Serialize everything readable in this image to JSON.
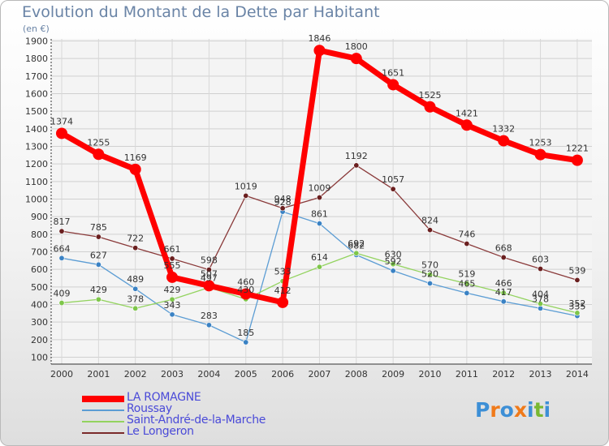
{
  "title": "Evolution du Montant de la Dette par Habitant",
  "unit_label": "(en €)",
  "logo_text": "Proxiti",
  "chart_data": {
    "type": "line",
    "title": "Evolution du Montant de la Dette par Habitant",
    "ylabel": "(en €)",
    "xlabel": "",
    "ylim": [
      100,
      1900
    ],
    "y_ticks": [
      100,
      200,
      300,
      400,
      500,
      600,
      700,
      800,
      900,
      1000,
      1100,
      1200,
      1300,
      1400,
      1500,
      1600,
      1700,
      1800,
      1900
    ],
    "x": [
      "2000",
      "2001",
      "2002",
      "2003",
      "2004",
      "2005",
      "2006",
      "2007",
      "2008",
      "2009",
      "2010",
      "2011",
      "2012",
      "2013",
      "2014"
    ],
    "grid": true,
    "legend_position": "bottom-left",
    "series": [
      {
        "name": "LA ROMAGNE",
        "color": "#ff0000",
        "values": [
          1374,
          1255,
          1169,
          555,
          507,
          460,
          412,
          1846,
          1800,
          1651,
          1525,
          1421,
          1332,
          1253,
          1221
        ]
      },
      {
        "name": "Roussay",
        "color": "#5c9dd4",
        "values": [
          664,
          627,
          489,
          343,
          283,
          185,
          928,
          861,
          682,
          592,
          520,
          465,
          417,
          378,
          335
        ]
      },
      {
        "name": "Saint-André-de-la-Marche",
        "color": "#93d35f",
        "values": [
          409,
          429,
          378,
          429,
          497,
          430,
          533,
          614,
          692,
          630,
          570,
          519,
          466,
          404,
          352
        ]
      },
      {
        "name": "Le Longeron",
        "color": "#7a2a2a",
        "values": [
          817,
          785,
          722,
          661,
          598,
          1019,
          948,
          1009,
          1192,
          1057,
          824,
          746,
          668,
          603,
          539
        ]
      }
    ]
  }
}
